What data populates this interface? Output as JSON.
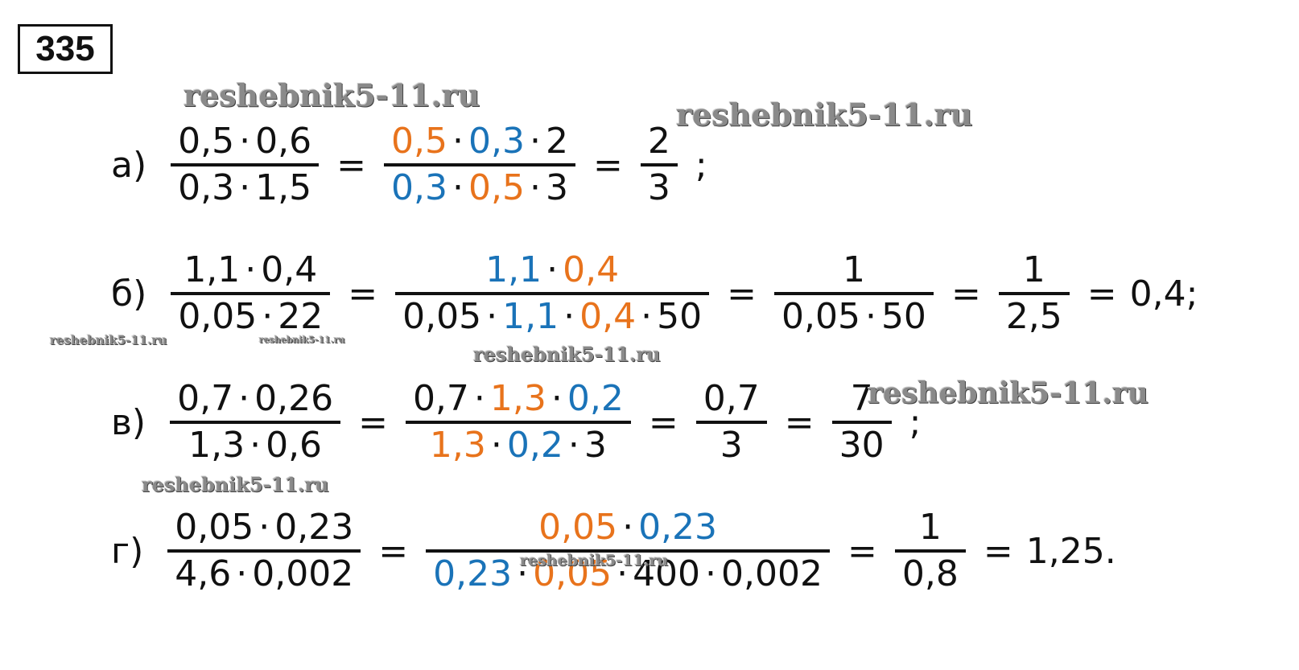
{
  "number": "335",
  "watermarks": [
    "reshebnik5-11.ru",
    "reshebnik5-11.ru",
    "reshebnik5-11.ru",
    "reshebnik5-11.ru",
    "reshebnik5-11.ru",
    "reshebnik5-11.ru",
    "reshebnik5-11.ru",
    "reshebnik5-11.ru"
  ],
  "items": [
    {
      "label": "а)",
      "parts": [
        {
          "num": [
            "0,5",
            "·",
            "0,6"
          ],
          "den": [
            "0,3",
            "·",
            "1,5"
          ]
        },
        "=",
        {
          "num": [
            {
              "t": "0,5",
              "c": "#e8731c"
            },
            "·",
            {
              "t": "0,3",
              "c": "#1a73b8"
            },
            "·",
            "2"
          ],
          "den": [
            {
              "t": "0,3",
              "c": "#1a73b8"
            },
            "·",
            {
              "t": "0,5",
              "c": "#e8731c"
            },
            "·",
            "3"
          ]
        },
        "=",
        {
          "num": [
            "2"
          ],
          "den": [
            "3"
          ]
        },
        ";"
      ]
    },
    {
      "label": "б)",
      "parts": [
        {
          "num": [
            "1,1",
            "·",
            "0,4"
          ],
          "den": [
            "0,05",
            "·",
            "22"
          ]
        },
        "=",
        {
          "num": [
            {
              "t": "1,1",
              "c": "#1a73b8"
            },
            "·",
            {
              "t": "0,4",
              "c": "#e8731c"
            }
          ],
          "den": [
            "0,05",
            "·",
            {
              "t": "1,1",
              "c": "#1a73b8"
            },
            "·",
            {
              "t": "0,4",
              "c": "#e8731c"
            },
            "·",
            "50"
          ]
        },
        "=",
        {
          "num": [
            "1"
          ],
          "den": [
            "0,05",
            "·",
            "50"
          ]
        },
        "=",
        {
          "num": [
            "1"
          ],
          "den": [
            "2,5"
          ]
        },
        "=",
        "0,4;"
      ]
    },
    {
      "label": "в)",
      "parts": [
        {
          "num": [
            "0,7",
            "·",
            "0,26"
          ],
          "den": [
            "1,3",
            "·",
            "0,6"
          ]
        },
        "=",
        {
          "num": [
            "0,7",
            "·",
            {
              "t": "1,3",
              "c": "#e8731c"
            },
            "·",
            {
              "t": "0,2",
              "c": "#1a73b8"
            }
          ],
          "den": [
            {
              "t": "1,3",
              "c": "#e8731c"
            },
            "·",
            {
              "t": "0,2",
              "c": "#1a73b8"
            },
            "·",
            "3"
          ]
        },
        "=",
        {
          "num": [
            "0,7"
          ],
          "den": [
            "3"
          ]
        },
        "=",
        {
          "num": [
            "7"
          ],
          "den": [
            "30"
          ]
        },
        ";"
      ]
    },
    {
      "label": "г)",
      "parts": [
        {
          "num": [
            "0,05",
            "·",
            "0,23"
          ],
          "den": [
            "4,6",
            "·",
            "0,002"
          ]
        },
        "=",
        {
          "num": [
            {
              "t": "0,05",
              "c": "#e8731c"
            },
            "·",
            {
              "t": "0,23",
              "c": "#1a73b8"
            }
          ],
          "den": [
            {
              "t": "0,23",
              "c": "#1a73b8"
            },
            "·",
            {
              "t": "0,05",
              "c": "#e8731c"
            },
            "·",
            "400",
            "·",
            "0,002"
          ]
        },
        "=",
        {
          "num": [
            "1"
          ],
          "den": [
            "0,8"
          ]
        },
        "=",
        "1,25."
      ]
    }
  ]
}
